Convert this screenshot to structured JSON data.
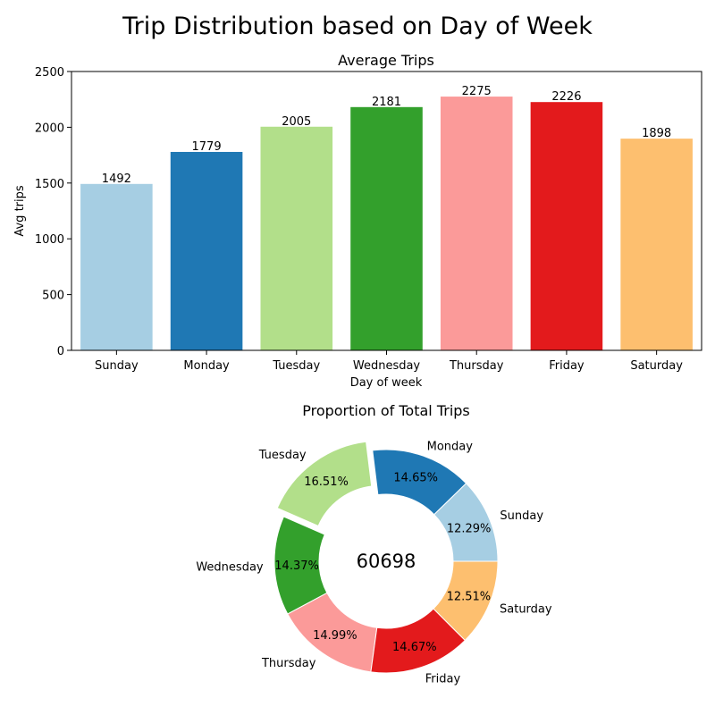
{
  "figure": {
    "title": "Trip Distribution based on Day of Week"
  },
  "chart_data": [
    {
      "type": "bar",
      "title": "Average Trips",
      "xlabel": "Day of week",
      "ylabel": "Avg trips",
      "categories": [
        "Sunday",
        "Monday",
        "Tuesday",
        "Wednesday",
        "Thursday",
        "Friday",
        "Saturday"
      ],
      "values": [
        1492,
        1779,
        2005,
        2181,
        2275,
        2226,
        1898
      ],
      "value_labels": [
        "1492",
        "1779",
        "2005",
        "2181",
        "2275",
        "2226",
        "1898"
      ],
      "ylim": [
        0,
        2500
      ],
      "yticks": [
        0,
        500,
        1000,
        1500,
        2000,
        2500
      ],
      "ytick_labels": [
        "0",
        "500",
        "1000",
        "1500",
        "2000",
        "2500"
      ],
      "colors": [
        "#a6cee3",
        "#1f78b4",
        "#b2df8a",
        "#33a02c",
        "#fb9a99",
        "#e31a1c",
        "#fdbf6f"
      ],
      "grid": false
    },
    {
      "type": "pie",
      "style": "donut",
      "title": "Proportion of Total Trips",
      "center_label": "60698",
      "labels": [
        "Sunday",
        "Monday",
        "Tuesday",
        "Wednesday",
        "Thursday",
        "Friday",
        "Saturday"
      ],
      "percentages": [
        12.29,
        14.65,
        16.51,
        14.37,
        14.99,
        14.67,
        12.51
      ],
      "pct_labels": [
        "12.29%",
        "14.65%",
        "16.51%",
        "14.37%",
        "14.99%",
        "14.67%",
        "12.51%"
      ],
      "exploded": "Tuesday",
      "colors": [
        "#a6cee3",
        "#1f78b4",
        "#b2df8a",
        "#33a02c",
        "#fb9a99",
        "#e31a1c",
        "#fdbf6f"
      ]
    }
  ]
}
